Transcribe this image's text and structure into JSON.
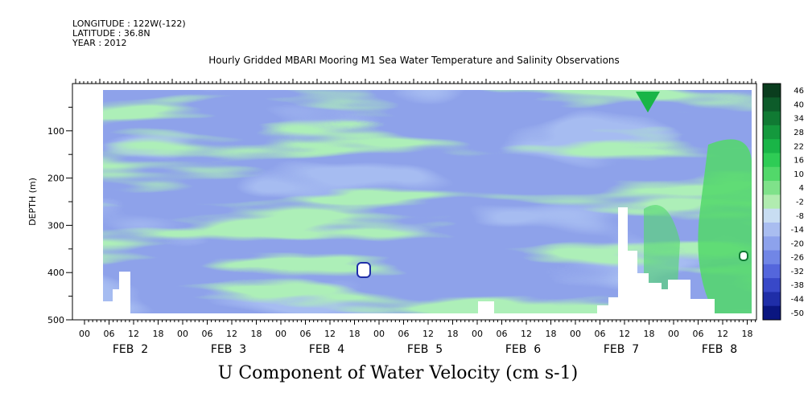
{
  "header": {
    "longitude": "LONGITUDE : 122W(-122)",
    "latitude": "LATITUDE : 36.8N",
    "year": "YEAR : 2012"
  },
  "chart_data": {
    "type": "heatmap",
    "title": "Hourly Gridded MBARI Mooring M1 Sea Water Temperature and Salinity Observations",
    "xlabel": "U Component of Water Velocity (cm s-1)",
    "ylabel": "DEPTH (m)",
    "ylim": [
      500,
      0
    ],
    "y_ticks": [
      100,
      200,
      300,
      400,
      500
    ],
    "x_hour_ticks": [
      "00",
      "06",
      "12",
      "18",
      "00",
      "06",
      "12",
      "18",
      "00",
      "06",
      "12",
      "18",
      "00",
      "06",
      "12",
      "18",
      "00",
      "06",
      "12",
      "18",
      "00",
      "06",
      "12",
      "18",
      "00",
      "06",
      "12",
      "18"
    ],
    "x_day_labels": [
      "FEB  2",
      "FEB  3",
      "FEB  4",
      "FEB  5",
      "FEB  6",
      "FEB  7",
      "FEB  8"
    ],
    "colorbar": {
      "labels": [
        "46",
        "40",
        "34",
        "28",
        "22",
        "16",
        "10",
        "4",
        "-2",
        "-8",
        "-14",
        "-20",
        "-26",
        "-32",
        "-38",
        "-44",
        "-50"
      ],
      "colors": [
        "#0a3d1e",
        "#0d5c2a",
        "#107a33",
        "#14993d",
        "#19b547",
        "#2ecc55",
        "#52d86a",
        "#7fe28a",
        "#b1ecb0",
        "#c8ddf2",
        "#a9bdf0",
        "#8da2ec",
        "#7186e6",
        "#5466dc",
        "#3848c8",
        "#1f2ea8",
        "#0a1680"
      ]
    }
  }
}
